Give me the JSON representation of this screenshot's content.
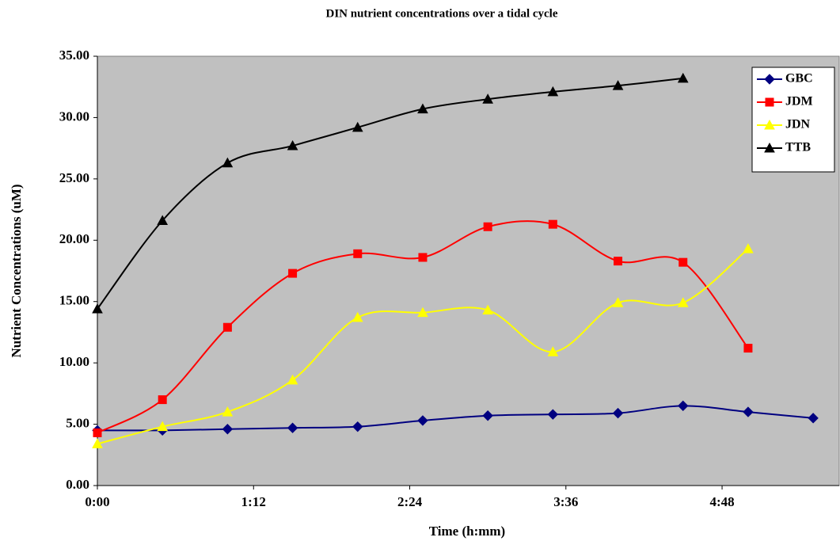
{
  "chart_data": {
    "type": "line",
    "title": "DIN nutrient concentrations over a tidal cycle",
    "x_label": "Time (h:mm)",
    "y_label": "Nutrient Concentrations (uM)",
    "xlim": [
      0,
      342
    ],
    "xticks": [
      {
        "value": 0,
        "label": "0:00"
      },
      {
        "value": 72,
        "label": "1:12"
      },
      {
        "value": 144,
        "label": "2:24"
      },
      {
        "value": 216,
        "label": "3:36"
      },
      {
        "value": 288,
        "label": "4:48"
      }
    ],
    "ylim": [
      0,
      35
    ],
    "yticks": [
      {
        "value": 0,
        "label": "0.00"
      },
      {
        "value": 5,
        "label": "5.00"
      },
      {
        "value": 10,
        "label": "10.00"
      },
      {
        "value": 15,
        "label": "15.00"
      },
      {
        "value": 20,
        "label": "20.00"
      },
      {
        "value": 25,
        "label": "25.00"
      },
      {
        "value": 30,
        "label": "30.00"
      },
      {
        "value": 35,
        "label": "35.00"
      }
    ],
    "smooth": true,
    "legend": "top-right",
    "series": [
      {
        "name": "GBC",
        "color": "#000080",
        "marker": "diamond",
        "x": [
          0,
          30,
          60,
          90,
          120,
          150,
          180,
          210,
          240,
          270,
          300,
          330
        ],
        "values": [
          4.5,
          4.5,
          4.6,
          4.7,
          4.8,
          5.3,
          5.7,
          5.8,
          5.9,
          6.5,
          6.0,
          5.5
        ]
      },
      {
        "name": "JDM",
        "color": "#ff0000",
        "marker": "square",
        "x": [
          0,
          30,
          60,
          90,
          120,
          150,
          180,
          210,
          240,
          270,
          300
        ],
        "values": [
          4.3,
          7.0,
          12.9,
          17.3,
          18.9,
          18.6,
          21.1,
          21.3,
          18.3,
          18.2,
          11.2
        ]
      },
      {
        "name": "JDN",
        "color": "#ffff00",
        "marker": "triangle",
        "x": [
          0,
          30,
          60,
          90,
          120,
          150,
          180,
          210,
          240,
          270,
          300
        ],
        "values": [
          3.4,
          4.8,
          6.0,
          8.6,
          13.7,
          14.1,
          14.3,
          10.9,
          14.9,
          14.9,
          19.3
        ]
      },
      {
        "name": "TTB",
        "color": "#000000",
        "marker": "triangle",
        "x": [
          0,
          30,
          60,
          90,
          120,
          150,
          180,
          210,
          240,
          270
        ],
        "values": [
          14.4,
          21.6,
          26.3,
          27.7,
          29.2,
          30.7,
          31.5,
          32.1,
          32.6,
          33.2
        ]
      }
    ]
  }
}
